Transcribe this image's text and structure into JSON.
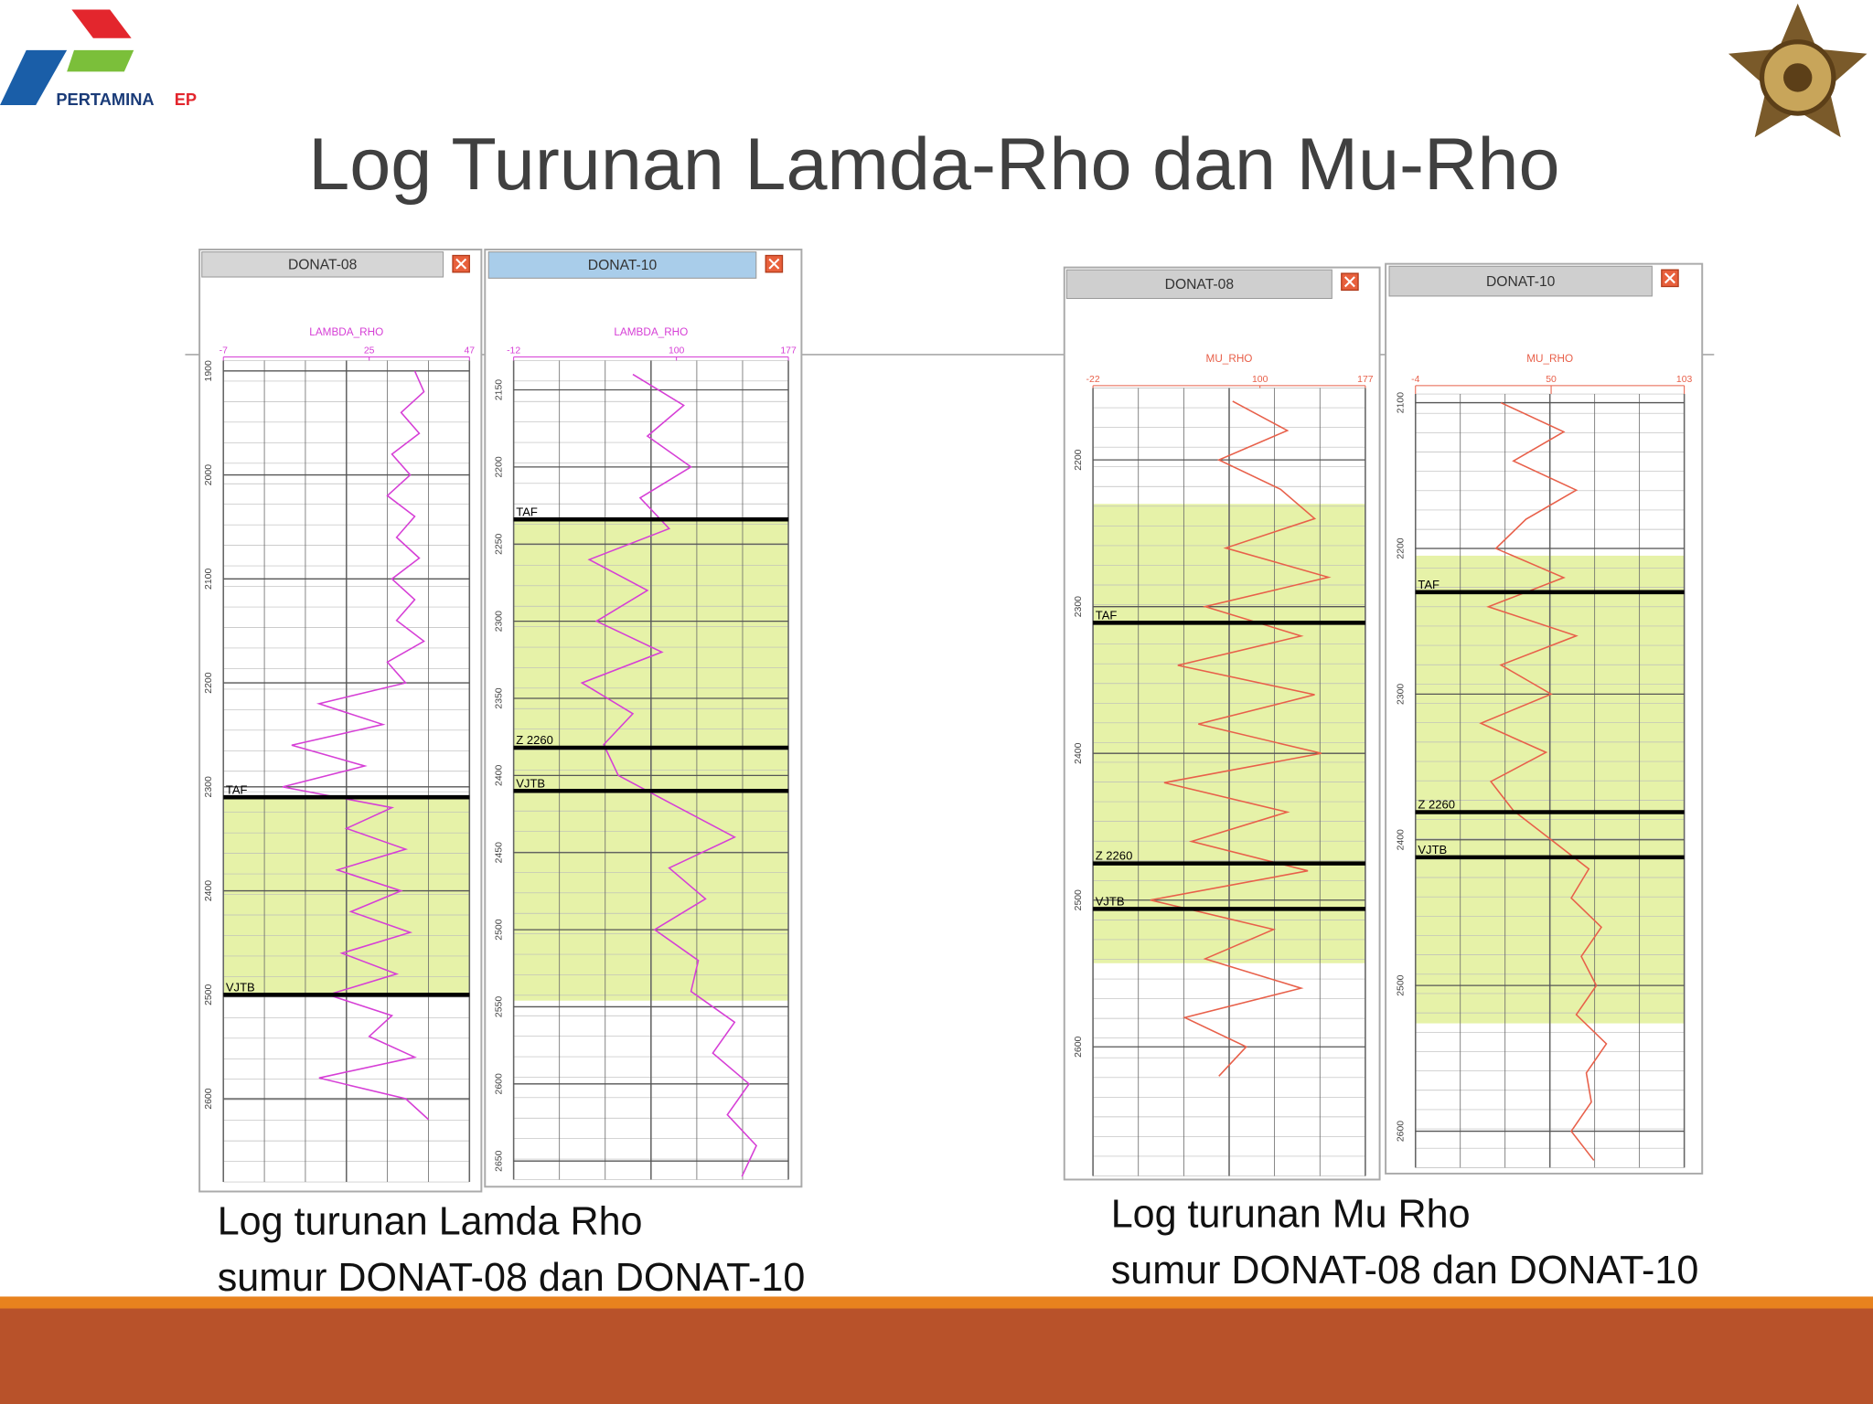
{
  "header": {
    "title": "Log Turunan Lamda-Rho dan Mu-Rho",
    "logo_name": "PERTAMINA",
    "logo_suffix": "EP"
  },
  "chart_data": [
    {
      "type": "log",
      "title": "DONAT-08",
      "x_label": "LAMBDA_RHO",
      "color": "#d63fd6",
      "xlim": [
        -7,
        47
      ],
      "xticks": [
        -7,
        25,
        47
      ],
      "ylim": [
        1890,
        2680
      ],
      "yticks": [
        1900,
        2000,
        2100,
        2200,
        2300,
        2400,
        2500,
        2600
      ],
      "zone": [
        2310,
        2500
      ],
      "tops": [
        {
          "name": "TAF",
          "depth": 2310
        },
        {
          "name": "VJTB",
          "depth": 2500
        }
      ],
      "depth": [
        1900,
        1920,
        1940,
        1960,
        1980,
        2000,
        2020,
        2040,
        2060,
        2080,
        2100,
        2120,
        2140,
        2160,
        2180,
        2200,
        2220,
        2240,
        2260,
        2280,
        2300,
        2320,
        2340,
        2360,
        2380,
        2400,
        2420,
        2440,
        2460,
        2480,
        2500,
        2520,
        2540,
        2560,
        2580,
        2600,
        2620
      ],
      "values": [
        35,
        37,
        32,
        36,
        30,
        34,
        29,
        35,
        31,
        36,
        30,
        35,
        31,
        37,
        29,
        33,
        14,
        28,
        8,
        24,
        6,
        30,
        20,
        33,
        18,
        32,
        21,
        34,
        19,
        31,
        16,
        30,
        25,
        35,
        14,
        33,
        38
      ]
    },
    {
      "type": "log",
      "title": "DONAT-10",
      "x_label": "LAMBDA_RHO",
      "color": "#d63fd6",
      "xlim": [
        -12,
        177
      ],
      "xticks": [
        -12,
        100,
        177
      ],
      "ylim": [
        2131,
        2662
      ],
      "yticks": [
        2150,
        2200,
        2250,
        2300,
        2350,
        2400,
        2450,
        2500,
        2550,
        2600,
        2650
      ],
      "zone": [
        2234,
        2546
      ],
      "tops": [
        {
          "name": "TAF",
          "depth": 2234
        },
        {
          "name": "Z 2260",
          "depth": 2382
        },
        {
          "name": "VJTB",
          "depth": 2410
        }
      ],
      "depth": [
        2140,
        2160,
        2180,
        2200,
        2220,
        2240,
        2260,
        2280,
        2300,
        2320,
        2340,
        2360,
        2380,
        2400,
        2420,
        2440,
        2460,
        2480,
        2500,
        2520,
        2540,
        2560,
        2580,
        2600,
        2620,
        2640,
        2660
      ],
      "values": [
        70,
        105,
        80,
        110,
        75,
        95,
        40,
        80,
        45,
        90,
        35,
        70,
        50,
        60,
        100,
        140,
        95,
        120,
        85,
        115,
        110,
        140,
        125,
        150,
        135,
        155,
        145
      ]
    },
    {
      "type": "log",
      "title": "DONAT-08",
      "x_label": "MU_RHO",
      "color": "#e8604a",
      "xlim": [
        -22,
        177
      ],
      "xticks": [
        -22,
        100,
        177
      ],
      "ylim": [
        2151,
        2688
      ],
      "yticks": [
        2200,
        2300,
        2400,
        2500,
        2600
      ],
      "zone": [
        2230,
        2543
      ],
      "tops": [
        {
          "name": "TAF",
          "depth": 2311
        },
        {
          "name": "Z 2260",
          "depth": 2475
        },
        {
          "name": "VJTB",
          "depth": 2506
        }
      ],
      "depth": [
        2160,
        2180,
        2200,
        2220,
        2240,
        2260,
        2280,
        2300,
        2320,
        2340,
        2360,
        2380,
        2400,
        2420,
        2440,
        2460,
        2480,
        2500,
        2520,
        2540,
        2560,
        2580,
        2600,
        2620
      ],
      "values": [
        80,
        120,
        70,
        115,
        140,
        75,
        150,
        60,
        130,
        40,
        140,
        55,
        145,
        30,
        120,
        50,
        135,
        20,
        110,
        60,
        130,
        45,
        90,
        70
      ]
    },
    {
      "type": "log",
      "title": "DONAT-10",
      "x_label": "MU_RHO",
      "color": "#e8604a",
      "xlim": [
        -4,
        103
      ],
      "xticks": [
        -4,
        50,
        103
      ],
      "ylim": [
        2094,
        2625
      ],
      "yticks": [
        2100,
        2200,
        2300,
        2400,
        2500,
        2600
      ],
      "zone": [
        2205,
        2526
      ],
      "tops": [
        {
          "name": "TAF",
          "depth": 2230
        },
        {
          "name": "Z 2260",
          "depth": 2381
        },
        {
          "name": "VJTB",
          "depth": 2412
        }
      ],
      "depth": [
        2100,
        2120,
        2140,
        2160,
        2180,
        2200,
        2220,
        2240,
        2260,
        2280,
        2300,
        2320,
        2340,
        2360,
        2380,
        2400,
        2420,
        2440,
        2460,
        2480,
        2500,
        2520,
        2540,
        2560,
        2580,
        2600,
        2620
      ],
      "values": [
        30,
        55,
        35,
        60,
        40,
        28,
        55,
        25,
        60,
        30,
        50,
        22,
        48,
        26,
        35,
        50,
        65,
        58,
        70,
        62,
        68,
        60,
        72,
        64,
        66,
        58,
        67
      ]
    }
  ],
  "captions": [
    {
      "line1": "Log turunan Lamda Rho",
      "line2": "sumur DONAT-08 dan DONAT-10"
    },
    {
      "line1": "Log turunan Mu Rho",
      "line2": "sumur DONAT-08 dan DONAT-10"
    }
  ]
}
